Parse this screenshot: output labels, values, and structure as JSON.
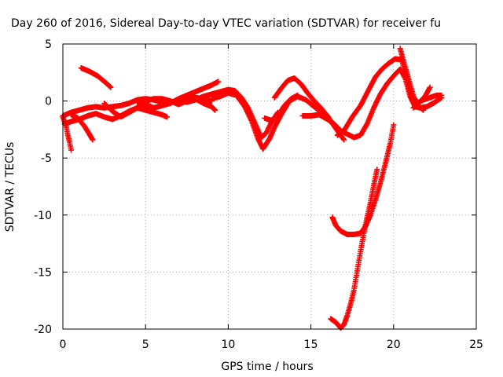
{
  "chart_data": {
    "type": "scatter",
    "title": "Day 260 of 2016, Sidereal Day-to-day VTEC variation (SDTVAR) for receiver fu",
    "xlabel": "GPS time / hours",
    "ylabel": "SDTVAR / TECUs",
    "xlim": [
      0,
      25
    ],
    "ylim": [
      -20,
      5
    ],
    "xticks": [
      "0",
      "5",
      "10",
      "15",
      "20",
      "25"
    ],
    "yticks": [
      "5",
      "0",
      "-5",
      "-10",
      "-15",
      "-20"
    ],
    "grid": true,
    "marker": "+",
    "series_color": "#ff0000",
    "series": [
      {
        "values": [
          [
            0.0,
            -1.3
          ],
          [
            0.5,
            -1.0
          ],
          [
            1.0,
            -0.8
          ],
          [
            1.5,
            -0.6
          ],
          [
            2.0,
            -0.5
          ],
          [
            2.5,
            -0.6
          ],
          [
            3.0,
            -0.5
          ],
          [
            3.5,
            -0.4
          ],
          [
            4.0,
            -0.2
          ],
          [
            4.5,
            0.1
          ],
          [
            5.0,
            0.2
          ],
          [
            5.5,
            0.1
          ],
          [
            6.0,
            -0.1
          ],
          [
            6.5,
            -0.1
          ],
          [
            7.0,
            0.0
          ],
          [
            7.5,
            0.2
          ],
          [
            8.0,
            0.3
          ],
          [
            8.5,
            0.2
          ],
          [
            9.0,
            0.0
          ]
        ]
      },
      {
        "values": [
          [
            0.1,
            -2.0
          ],
          [
            0.5,
            -1.8
          ],
          [
            1.0,
            -1.6
          ],
          [
            1.5,
            -1.3
          ],
          [
            2.0,
            -1.1
          ],
          [
            2.5,
            -1.4
          ],
          [
            3.0,
            -1.6
          ],
          [
            3.5,
            -1.3
          ],
          [
            4.0,
            -0.9
          ],
          [
            4.5,
            -0.6
          ],
          [
            5.0,
            -0.3
          ],
          [
            5.5,
            -0.6
          ],
          [
            6.0,
            -0.4
          ],
          [
            6.5,
            -0.2
          ],
          [
            7.0,
            0.2
          ],
          [
            7.5,
            0.5
          ],
          [
            8.0,
            0.8
          ],
          [
            8.5,
            1.1
          ],
          [
            9.0,
            1.4
          ],
          [
            9.4,
            1.7
          ]
        ]
      },
      {
        "values": [
          [
            0.0,
            -1.4
          ],
          [
            0.2,
            -2.2
          ],
          [
            0.3,
            -3.0
          ],
          [
            0.4,
            -3.6
          ],
          [
            0.5,
            -4.3
          ]
        ]
      },
      {
        "values": [
          [
            0.5,
            -1.2
          ],
          [
            0.9,
            -1.5
          ],
          [
            1.3,
            -2.2
          ],
          [
            1.6,
            -2.9
          ],
          [
            1.8,
            -3.4
          ]
        ]
      },
      {
        "values": [
          [
            1.1,
            2.9
          ],
          [
            1.6,
            2.6
          ],
          [
            2.1,
            2.2
          ],
          [
            2.6,
            1.6
          ],
          [
            2.9,
            1.2
          ]
        ]
      },
      {
        "values": [
          [
            2.5,
            -0.2
          ],
          [
            3.0,
            -0.9
          ],
          [
            3.5,
            -1.4
          ],
          [
            4.0,
            -1.0
          ],
          [
            4.5,
            -0.6
          ],
          [
            5.0,
            -0.8
          ],
          [
            5.5,
            -1.0
          ],
          [
            6.0,
            -1.2
          ],
          [
            6.3,
            -1.4
          ]
        ]
      },
      {
        "values": [
          [
            4.5,
            -0.1
          ],
          [
            5.0,
            0.0
          ],
          [
            5.5,
            0.2
          ],
          [
            6.0,
            0.2
          ],
          [
            6.5,
            0.0
          ],
          [
            7.0,
            -0.3
          ],
          [
            7.5,
            0.0
          ],
          [
            8.0,
            0.2
          ],
          [
            8.5,
            -0.2
          ],
          [
            9.0,
            -0.5
          ],
          [
            9.2,
            -0.8
          ]
        ]
      },
      {
        "values": [
          [
            7.0,
            0.0
          ],
          [
            7.5,
            -0.1
          ],
          [
            8.0,
            0.1
          ],
          [
            8.5,
            0.4
          ],
          [
            9.0,
            0.6
          ],
          [
            9.5,
            0.8
          ],
          [
            10.0,
            1.0
          ],
          [
            10.4,
            0.9
          ],
          [
            10.8,
            0.3
          ],
          [
            11.2,
            -0.6
          ],
          [
            11.6,
            -1.9
          ],
          [
            12.0,
            -3.2
          ],
          [
            12.3,
            -2.8
          ],
          [
            12.6,
            -1.9
          ],
          [
            13.0,
            -1.0
          ]
        ]
      },
      {
        "values": [
          [
            9.0,
            0.2
          ],
          [
            9.5,
            0.4
          ],
          [
            10.0,
            0.7
          ],
          [
            10.5,
            0.5
          ],
          [
            11.0,
            -0.5
          ],
          [
            11.4,
            -1.7
          ],
          [
            11.8,
            -3.3
          ],
          [
            12.1,
            -4.2
          ],
          [
            12.5,
            -3.3
          ],
          [
            12.8,
            -2.3
          ],
          [
            13.2,
            -1.2
          ],
          [
            13.7,
            0.0
          ],
          [
            14.2,
            0.4
          ],
          [
            14.7,
            0.1
          ],
          [
            15.2,
            -0.5
          ],
          [
            15.7,
            -1.1
          ],
          [
            16.2,
            -1.8
          ],
          [
            16.6,
            -2.5
          ],
          [
            16.9,
            -2.9
          ]
        ]
      },
      {
        "values": [
          [
            12.8,
            0.3
          ],
          [
            13.2,
            1.1
          ],
          [
            13.6,
            1.8
          ],
          [
            14.0,
            2.0
          ],
          [
            14.4,
            1.5
          ],
          [
            14.8,
            0.7
          ],
          [
            15.2,
            0.0
          ],
          [
            15.6,
            -0.6
          ],
          [
            16.0,
            -1.3
          ],
          [
            16.5,
            -2.4
          ],
          [
            17.0,
            -3.4
          ]
        ]
      },
      {
        "values": [
          [
            12.2,
            -1.5
          ],
          [
            12.6,
            -1.7
          ],
          [
            13.0,
            -1.3
          ],
          [
            13.4,
            -0.4
          ],
          [
            13.8,
            0.2
          ],
          [
            14.2,
            0.5
          ]
        ]
      },
      {
        "values": [
          [
            14.5,
            -1.3
          ],
          [
            15.0,
            -1.3
          ],
          [
            15.5,
            -1.2
          ],
          [
            16.0,
            -1.6
          ],
          [
            16.4,
            -2.0
          ],
          [
            16.8,
            -2.6
          ],
          [
            17.2,
            -2.9
          ],
          [
            17.6,
            -3.2
          ],
          [
            18.0,
            -3.0
          ],
          [
            18.4,
            -2.0
          ],
          [
            18.8,
            -0.6
          ],
          [
            19.2,
            0.6
          ],
          [
            19.6,
            1.5
          ],
          [
            20.0,
            2.2
          ],
          [
            20.4,
            2.8
          ],
          [
            20.7,
            2.0
          ],
          [
            21.0,
            0.4
          ],
          [
            21.3,
            -0.5
          ],
          [
            21.6,
            -0.6
          ],
          [
            22.0,
            -0.5
          ],
          [
            22.4,
            -0.2
          ],
          [
            22.9,
            0.3
          ]
        ]
      },
      {
        "values": [
          [
            16.6,
            -3.0
          ],
          [
            17.0,
            -2.6
          ],
          [
            17.5,
            -1.4
          ],
          [
            18.0,
            -0.4
          ],
          [
            18.5,
            1.0
          ],
          [
            18.9,
            2.1
          ],
          [
            19.3,
            2.8
          ],
          [
            19.7,
            3.3
          ],
          [
            20.1,
            3.7
          ],
          [
            20.5,
            3.6
          ],
          [
            20.8,
            1.9
          ],
          [
            21.1,
            0.3
          ],
          [
            21.4,
            -0.2
          ],
          [
            21.8,
            0.1
          ],
          [
            22.2,
            0.3
          ],
          [
            22.6,
            0.5
          ],
          [
            22.9,
            0.5
          ]
        ]
      },
      {
        "values": [
          [
            20.4,
            4.6
          ],
          [
            20.6,
            3.5
          ],
          [
            20.9,
            2.0
          ],
          [
            21.2,
            0.4
          ],
          [
            21.5,
            -0.4
          ],
          [
            21.8,
            -0.8
          ]
        ]
      },
      {
        "values": [
          [
            21.2,
            -0.6
          ],
          [
            21.5,
            -0.2
          ],
          [
            21.9,
            0.4
          ],
          [
            22.2,
            1.2
          ]
        ]
      },
      {
        "values": [
          [
            16.3,
            -10.2
          ],
          [
            16.5,
            -10.9
          ],
          [
            16.8,
            -11.4
          ],
          [
            17.2,
            -11.7
          ],
          [
            17.6,
            -11.7
          ],
          [
            18.0,
            -11.6
          ],
          [
            18.3,
            -11.0
          ],
          [
            18.6,
            -10.0
          ],
          [
            18.9,
            -8.7
          ],
          [
            19.2,
            -7.2
          ],
          [
            19.5,
            -5.5
          ],
          [
            19.8,
            -3.7
          ],
          [
            20.0,
            -2.1
          ]
        ]
      },
      {
        "values": [
          [
            16.2,
            -19.1
          ],
          [
            16.5,
            -19.4
          ],
          [
            16.8,
            -19.9
          ],
          [
            17.0,
            -19.6
          ],
          [
            17.2,
            -18.8
          ],
          [
            17.4,
            -17.8
          ],
          [
            17.6,
            -16.6
          ],
          [
            17.8,
            -14.9
          ],
          [
            18.0,
            -13.2
          ],
          [
            18.2,
            -11.6
          ],
          [
            18.4,
            -10.2
          ],
          [
            18.6,
            -8.9
          ],
          [
            18.8,
            -7.4
          ],
          [
            19.0,
            -6.0
          ]
        ]
      }
    ]
  }
}
